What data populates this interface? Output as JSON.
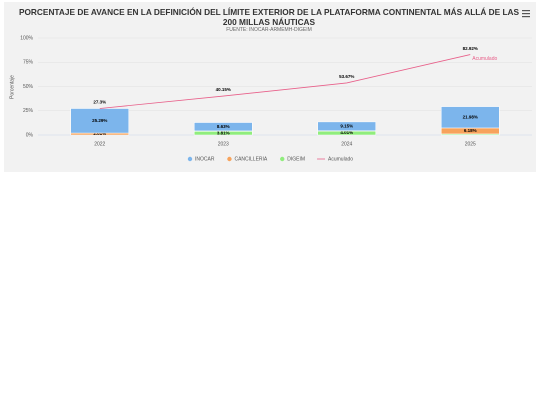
{
  "chart_data": {
    "type": "bar",
    "stacked": true,
    "title": "PORCENTAJE DE AVANCE EN LA DEFINICIÓN DEL LÍMITE EXTERIOR DE LA PLATAFORMA CONTINENTAL MÁS ALLÁ DE LAS 200 MILLAS NÁUTICAS",
    "subtitle": "FUENTE: INOCAR-ARMEMH-DIGEIM",
    "y_label": "Porcentaje",
    "categories": [
      "2022",
      "2023",
      "2024",
      "2025"
    ],
    "ylim": [
      0,
      100
    ],
    "yticks": [
      {
        "value": 0,
        "label": "0%"
      },
      {
        "value": 25,
        "label": "25%"
      },
      {
        "value": 50,
        "label": "50%"
      },
      {
        "value": 75,
        "label": "75%"
      },
      {
        "value": 100,
        "label": "100%"
      }
    ],
    "grid": true,
    "legend": "bottom",
    "series": [
      {
        "name": "INOCAR",
        "color": "#7cb5ec",
        "values": [
          25.29,
          8.63,
          9.15,
          21.98
        ],
        "value_labels": [
          "25.29%",
          "8.63%",
          "9.15%",
          "21.98%"
        ]
      },
      {
        "name": "CANCILLERIA",
        "color": "#f7a35c",
        "values": [
          2.01,
          0.41,
          0.36,
          6.18
        ],
        "value_labels": [
          "2.01%",
          null,
          null,
          "6.18%"
        ]
      },
      {
        "name": "DIGEIM",
        "color": "#90ed7d",
        "values": [
          0,
          3.81,
          4.01,
          1.09
        ],
        "value_labels": [
          null,
          "3.81%",
          "4.01%",
          null
        ]
      },
      {
        "name": "Acumulado",
        "type": "line",
        "color": "#e8608a",
        "values": [
          27.3,
          40.15,
          53.67,
          82.92
        ],
        "value_labels": [
          "27.3%",
          "40.15%",
          "53.67%",
          "82.92%"
        ]
      }
    ]
  }
}
